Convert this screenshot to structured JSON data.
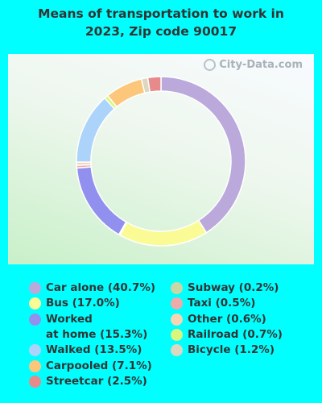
{
  "title": "Means of transportation to work in 2023, Zip code 90017",
  "watermark": "City-Data.com",
  "chart_data": {
    "type": "pie",
    "title": "Means of transportation to work in 2023, Zip code 90017",
    "donut": true,
    "legend_position": "bottom",
    "slices": [
      {
        "label": "Car alone",
        "value": 40.7,
        "display": "Car alone (40.7%)",
        "color": "#bba9dc"
      },
      {
        "label": "Bus",
        "value": 17.0,
        "display": "Bus (17.0%)",
        "color": "#fbfb96"
      },
      {
        "label": "Subway",
        "value": 0.2,
        "display": "Subway (0.2%)",
        "color": "#c8d7a3"
      },
      {
        "label": "Worked at home",
        "value": 15.3,
        "display": "Worked at home (15.3%)",
        "color": "#9290ef"
      },
      {
        "label": "Taxi",
        "value": 0.5,
        "display": "Taxi (0.5%)",
        "color": "#f0aaa9"
      },
      {
        "label": "Other",
        "value": 0.6,
        "display": "Other (0.6%)",
        "color": "#f7d5b3"
      },
      {
        "label": "Walked",
        "value": 13.5,
        "display": "Walked (13.5%)",
        "color": "#acd4fa"
      },
      {
        "label": "Railroad",
        "value": 0.7,
        "display": "Railroad (0.7%)",
        "color": "#d9f77e"
      },
      {
        "label": "Carpooled",
        "value": 7.1,
        "display": "Carpooled (7.1%)",
        "color": "#fcc77b"
      },
      {
        "label": "Bicycle",
        "value": 1.2,
        "display": "Bicycle (1.2%)",
        "color": "#dcd7bf"
      },
      {
        "label": "Streetcar",
        "value": 2.5,
        "display": "Streetcar (2.5%)",
        "color": "#e68a8c"
      }
    ],
    "legend": {
      "left": [
        {
          "text": "Car alone (40.7%)",
          "color": "#bba9dc"
        },
        {
          "text": "Bus (17.0%)",
          "color": "#fbfb96"
        },
        {
          "text": "Worked at home (15.3%)",
          "line1": "Worked",
          "line2": "at home (15.3%)",
          "color": "#9290ef"
        },
        {
          "text": "Walked (13.5%)",
          "color": "#acd4fa"
        },
        {
          "text": "Carpooled (7.1%)",
          "color": "#fcc77b"
        },
        {
          "text": "Streetcar (2.5%)",
          "color": "#e68a8c"
        }
      ],
      "right": [
        {
          "text": "Subway (0.2%)",
          "color": "#c8d7a3"
        },
        {
          "text": "Taxi (0.5%)",
          "color": "#f0aaa9"
        },
        {
          "text": "Other (0.6%)",
          "color": "#f7d5b3"
        },
        {
          "text": "Railroad (0.7%)",
          "color": "#d9f77e"
        },
        {
          "text": "Bicycle (1.2%)",
          "color": "#dcd7bf"
        }
      ]
    }
  }
}
